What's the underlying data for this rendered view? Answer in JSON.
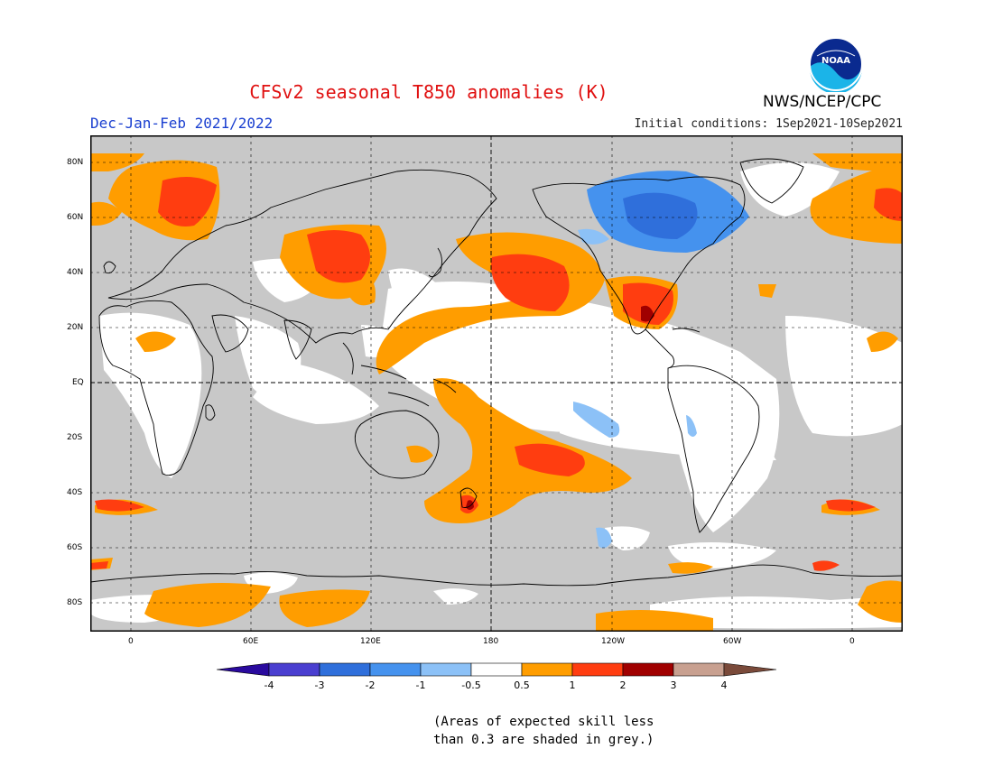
{
  "title": "CFSv2 seasonal T850 anomalies (K)",
  "period": "Dec-Jan-Feb 2021/2022",
  "initial_conditions": "Initial conditions: 1Sep2021-10Sep2021",
  "agency": "NWS/NCEP/CPC",
  "logo_text": "NOAA",
  "note_line1": "(Areas of expected skill less",
  "note_line2": "than 0.3 are shaded in grey.)",
  "lat_labels": [
    "80N",
    "60N",
    "40N",
    "20N",
    "EQ",
    "20S",
    "40S",
    "60S",
    "80S"
  ],
  "lon_labels": [
    "0",
    "60E",
    "120E",
    "180",
    "120W",
    "60W",
    "0"
  ],
  "colorbar": {
    "labels": [
      "-4",
      "-3",
      "-2",
      "-1",
      "-0.5",
      "0.5",
      "1",
      "2",
      "3",
      "4"
    ],
    "colors": [
      "#2a0a9e",
      "#4a3fd0",
      "#2f6fdb",
      "#4592ee",
      "#8cc1f7",
      "#ffffff",
      "#ff9d00",
      "#ff3d10",
      "#a00000",
      "#c8a090",
      "#7a4a3a"
    ]
  },
  "colors": {
    "grey_low_skill": "#c8c8c8",
    "warm_light": "#ff9d00",
    "warm": "#ff3d10",
    "warm_dark": "#a00000",
    "cool_light": "#8cc1f7",
    "cool": "#4592ee",
    "cool_dark": "#2f6fdb"
  }
}
